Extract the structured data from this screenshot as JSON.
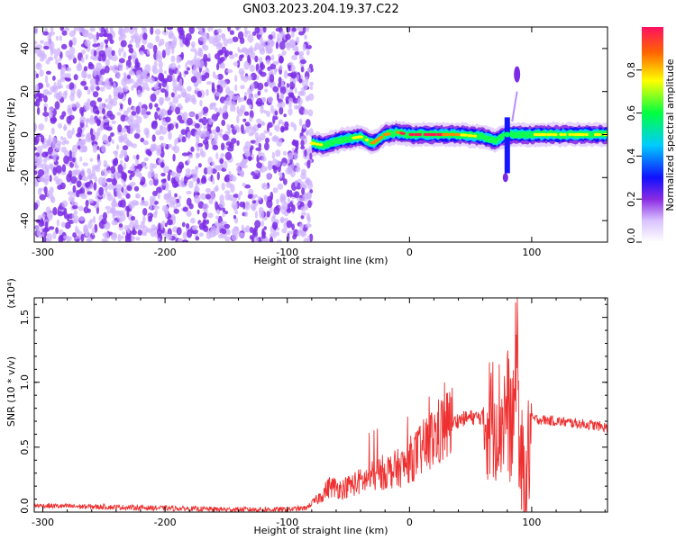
{
  "title": "GN03.2023.204.19.37.C22",
  "chart_data": [
    {
      "type": "heatmap",
      "xlabel": "Height of straight line (km)",
      "ylabel": "Frequency (Hz)",
      "xlim": [
        -307,
        162
      ],
      "ylim": [
        -50,
        50
      ],
      "xticks": [
        -300,
        -200,
        -100,
        0,
        100
      ],
      "yticks": [
        -40,
        -20,
        0,
        20,
        40
      ],
      "colorbar": {
        "label": "Normalized spectral amplitude",
        "range": [
          0,
          1
        ],
        "ticks": [
          "0.0",
          "0.2",
          "0.4",
          "0.6",
          "0.8"
        ]
      },
      "noise_region_x": [
        -307,
        -80
      ],
      "signal_band": [
        {
          "x": -80,
          "f": -4,
          "amp": 0.6
        },
        {
          "x": -70,
          "f": -5,
          "amp": 0.55
        },
        {
          "x": -60,
          "f": -3,
          "amp": 0.5
        },
        {
          "x": -50,
          "f": -2,
          "amp": 0.55
        },
        {
          "x": -40,
          "f": -1,
          "amp": 0.6
        },
        {
          "x": -30,
          "f": -4,
          "amp": 0.7
        },
        {
          "x": -20,
          "f": 0,
          "amp": 0.8
        },
        {
          "x": -10,
          "f": 1,
          "amp": 0.75
        },
        {
          "x": 0,
          "f": 0,
          "amp": 0.9
        },
        {
          "x": 20,
          "f": 0,
          "amp": 0.85
        },
        {
          "x": 40,
          "f": 0,
          "amp": 0.7
        },
        {
          "x": 60,
          "f": -1,
          "amp": 0.5
        },
        {
          "x": 70,
          "f": -3,
          "amp": 0.45
        },
        {
          "x": 80,
          "f": 0,
          "amp": 0.4
        },
        {
          "x": 100,
          "f": 0,
          "amp": 0.55
        },
        {
          "x": 130,
          "f": 0,
          "amp": 0.6
        },
        {
          "x": 162,
          "f": 0,
          "amp": 0.55
        }
      ],
      "spike": {
        "x": 80,
        "f_range": [
          -22,
          30
        ]
      }
    },
    {
      "type": "line",
      "xlabel": "Height of straight line (km)",
      "ylabel": "SNR (10 * v/v)",
      "yscale_label": "(x10⁴)",
      "xlim": [
        -307,
        162
      ],
      "ylim": [
        0,
        1.65
      ],
      "xticks": [
        -300,
        -200,
        -100,
        0,
        100
      ],
      "yticks": [
        "0.0",
        "0.5",
        "1.0",
        "1.5"
      ],
      "series": [
        {
          "color": "#ee3030",
          "x": [
            -307,
            -250,
            -200,
            -150,
            -100,
            -85,
            -75,
            -65,
            -55,
            -45,
            -35,
            -25,
            -15,
            -5,
            0,
            10,
            20,
            30,
            40,
            50,
            60,
            65,
            70,
            75,
            80,
            85,
            88,
            90,
            95,
            100,
            110,
            120,
            130,
            140,
            150,
            162
          ],
          "y": [
            0.05,
            0.04,
            0.03,
            0.02,
            0.02,
            0.03,
            0.1,
            0.2,
            0.18,
            0.22,
            0.25,
            0.3,
            0.32,
            0.35,
            0.4,
            0.48,
            0.58,
            0.66,
            0.71,
            0.73,
            0.73,
            0.72,
            0.74,
            0.7,
            0.8,
            0.6,
            1.5,
            0.4,
            0.2,
            0.72,
            0.71,
            0.7,
            0.69,
            0.68,
            0.67,
            0.65
          ]
        }
      ]
    }
  ]
}
